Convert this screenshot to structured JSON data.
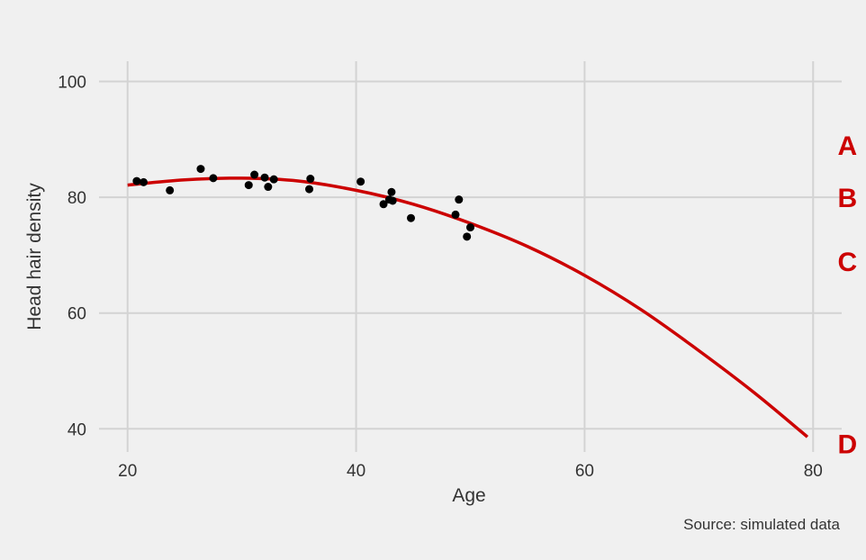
{
  "chart_data": {
    "type": "scatter",
    "xlabel": "Age",
    "ylabel": "Head hair density",
    "caption": "Source: simulated data",
    "xlim": [
      17.5,
      82.5
    ],
    "ylim": [
      36,
      103.5
    ],
    "x_ticks": [
      20,
      40,
      60,
      80
    ],
    "y_ticks": [
      40,
      60,
      80,
      100
    ],
    "grid": true,
    "colors": {
      "points": "#000000",
      "curve": "#cc0000",
      "annotations": "#cc0000",
      "background": "#f0f0f0",
      "grid": "#d3d3d3"
    },
    "points": [
      {
        "x": 20.8,
        "y": 82.8
      },
      {
        "x": 21.4,
        "y": 82.6
      },
      {
        "x": 23.7,
        "y": 81.2
      },
      {
        "x": 26.4,
        "y": 84.9
      },
      {
        "x": 27.5,
        "y": 83.3
      },
      {
        "x": 30.6,
        "y": 82.1
      },
      {
        "x": 31.1,
        "y": 83.9
      },
      {
        "x": 32.0,
        "y": 83.4
      },
      {
        "x": 32.3,
        "y": 81.8
      },
      {
        "x": 32.8,
        "y": 83.1
      },
      {
        "x": 35.9,
        "y": 81.4
      },
      {
        "x": 36.0,
        "y": 83.2
      },
      {
        "x": 40.4,
        "y": 82.7
      },
      {
        "x": 42.4,
        "y": 78.8
      },
      {
        "x": 42.9,
        "y": 79.6
      },
      {
        "x": 43.1,
        "y": 80.9
      },
      {
        "x": 43.2,
        "y": 79.4
      },
      {
        "x": 44.8,
        "y": 76.4
      },
      {
        "x": 48.7,
        "y": 77.0
      },
      {
        "x": 49.0,
        "y": 79.6
      },
      {
        "x": 49.7,
        "y": 73.2
      },
      {
        "x": 50.0,
        "y": 74.8
      }
    ],
    "fit_curve": {
      "type": "quadratic",
      "points": [
        {
          "x": 20,
          "y": 82.1
        },
        {
          "x": 25,
          "y": 83.0
        },
        {
          "x": 30,
          "y": 83.3
        },
        {
          "x": 35,
          "y": 82.8
        },
        {
          "x": 40,
          "y": 81.2
        },
        {
          "x": 45,
          "y": 78.8
        },
        {
          "x": 50,
          "y": 75.5
        },
        {
          "x": 55,
          "y": 71.5
        },
        {
          "x": 60,
          "y": 66.5
        },
        {
          "x": 65,
          "y": 60.5
        },
        {
          "x": 70,
          "y": 53.5
        },
        {
          "x": 75,
          "y": 46.0
        },
        {
          "x": 79.5,
          "y": 38.6
        }
      ]
    },
    "annotations": [
      {
        "text": "A",
        "x": 83,
        "y": 89
      },
      {
        "text": "B",
        "x": 83,
        "y": 80
      },
      {
        "text": "C",
        "x": 83,
        "y": 69
      },
      {
        "text": "D",
        "x": 83,
        "y": 37.5
      }
    ]
  }
}
